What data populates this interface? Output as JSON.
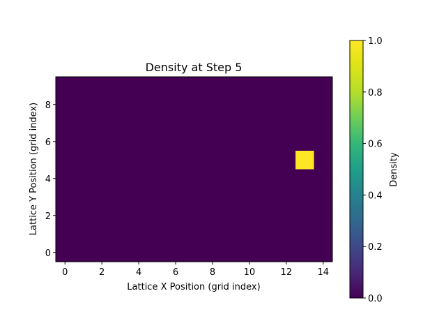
{
  "chart_data": {
    "type": "heatmap",
    "title": "Density at Step 5",
    "xlabel": "Lattice X Position (grid index)",
    "ylabel": "Lattice Y Position (grid index)",
    "colorbar_label": "Density",
    "grid": false,
    "nx": 15,
    "ny": 10,
    "xlim": [
      -0.5,
      14.5
    ],
    "ylim": [
      -0.5,
      9.5
    ],
    "x_ticks": [
      0,
      2,
      4,
      6,
      8,
      10,
      12,
      14
    ],
    "y_ticks": [
      0,
      2,
      4,
      6,
      8
    ],
    "background_value": 0.0,
    "cells": [
      {
        "x": 13,
        "y": 5,
        "value": 1.0
      }
    ],
    "colormap": "viridis",
    "color_low": "#440154",
    "color_high": "#fde725",
    "colorbar_range": [
      0.0,
      1.0
    ],
    "colorbar_ticks": [
      "0.0",
      "0.2",
      "0.4",
      "0.6",
      "0.8",
      "1.0"
    ],
    "colorbar_placement": "right"
  }
}
